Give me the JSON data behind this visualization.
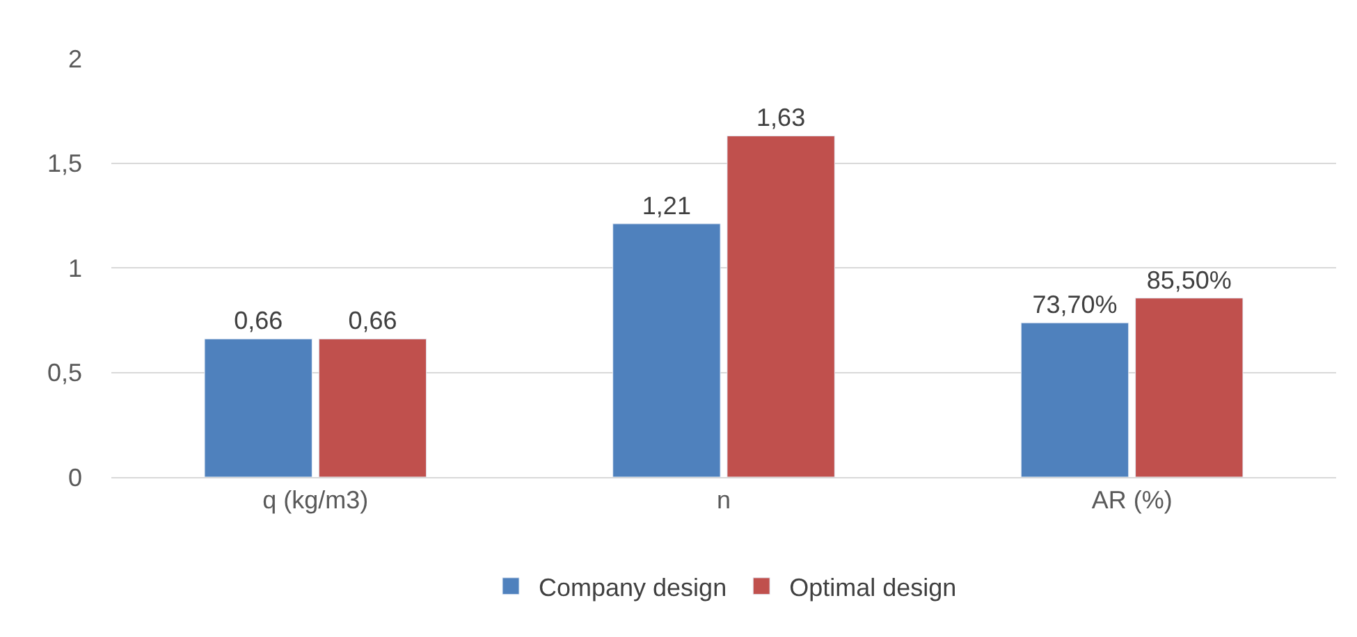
{
  "chart_data": {
    "type": "bar",
    "categories": [
      "q (kg/m3)",
      "n",
      "AR (%)"
    ],
    "series": [
      {
        "name": "Company design",
        "color": "#4f81bd",
        "values": [
          0.66,
          1.21,
          0.737
        ],
        "value_labels": [
          "0,66",
          "1,21",
          "73,70%"
        ]
      },
      {
        "name": "Optimal design",
        "color": "#c0504d",
        "values": [
          0.66,
          1.63,
          0.855
        ],
        "value_labels": [
          "0,66",
          "1,63",
          "85,50%"
        ]
      }
    ],
    "ylim": [
      0,
      2
    ],
    "yticks": [
      0,
      {
        "value": 0.5,
        "label": "0,5"
      },
      1,
      {
        "value": 1.5,
        "label": "1,5"
      },
      2
    ],
    "grid": "y",
    "legend": "bottom"
  }
}
